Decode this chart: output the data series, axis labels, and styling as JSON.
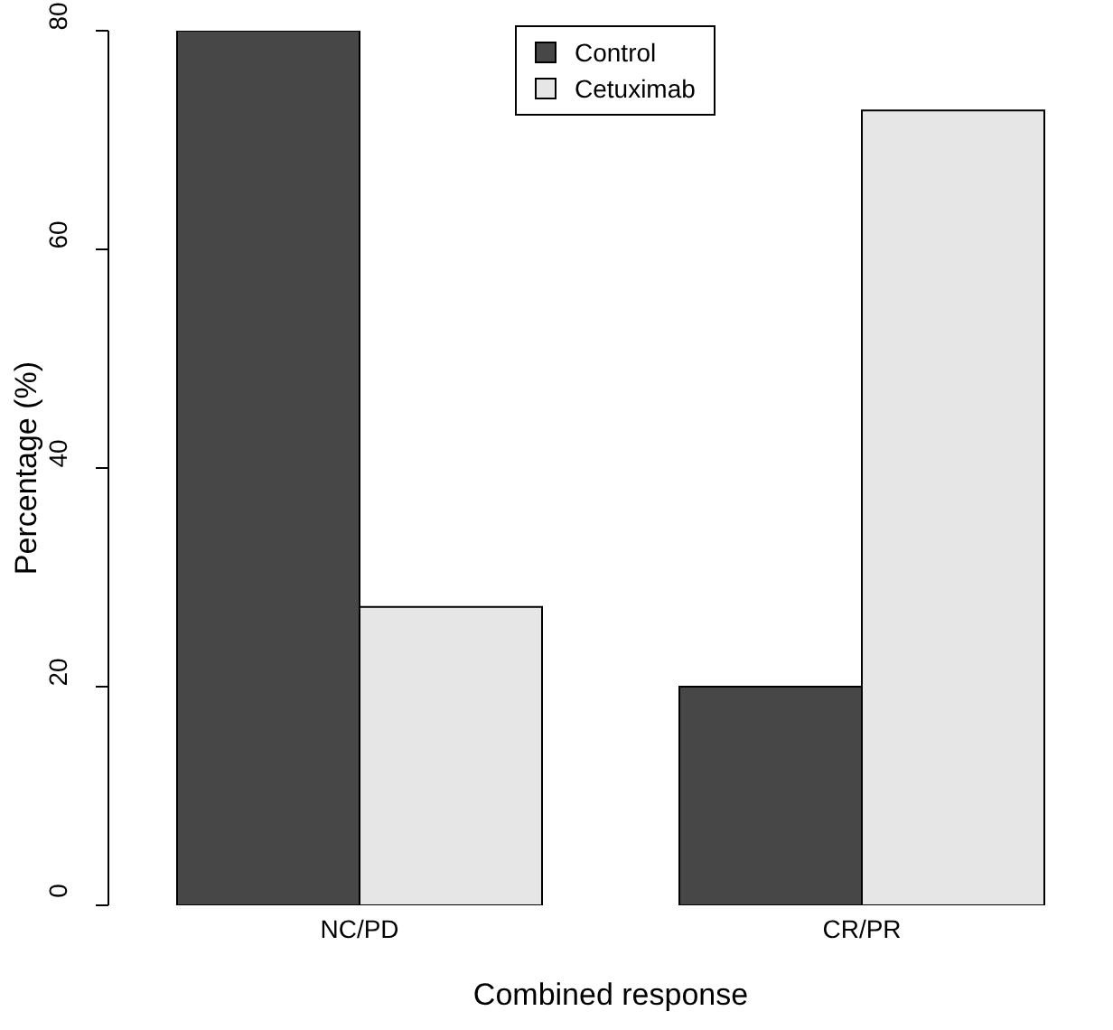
{
  "chart_data": {
    "type": "bar",
    "xlabel": "Combined response",
    "ylabel": "Percentage (%)",
    "categories": [
      "NC/PD",
      "CR/PR"
    ],
    "series": [
      {
        "name": "Control",
        "color": "#474747",
        "values": [
          80,
          20
        ]
      },
      {
        "name": "Cetuximab",
        "color": "#e6e6e6",
        "values": [
          27.3,
          72.7
        ]
      }
    ],
    "ylim": [
      0,
      80
    ],
    "yticks": [
      0,
      20,
      40,
      60,
      80
    ],
    "grid": false,
    "legend": "top"
  }
}
